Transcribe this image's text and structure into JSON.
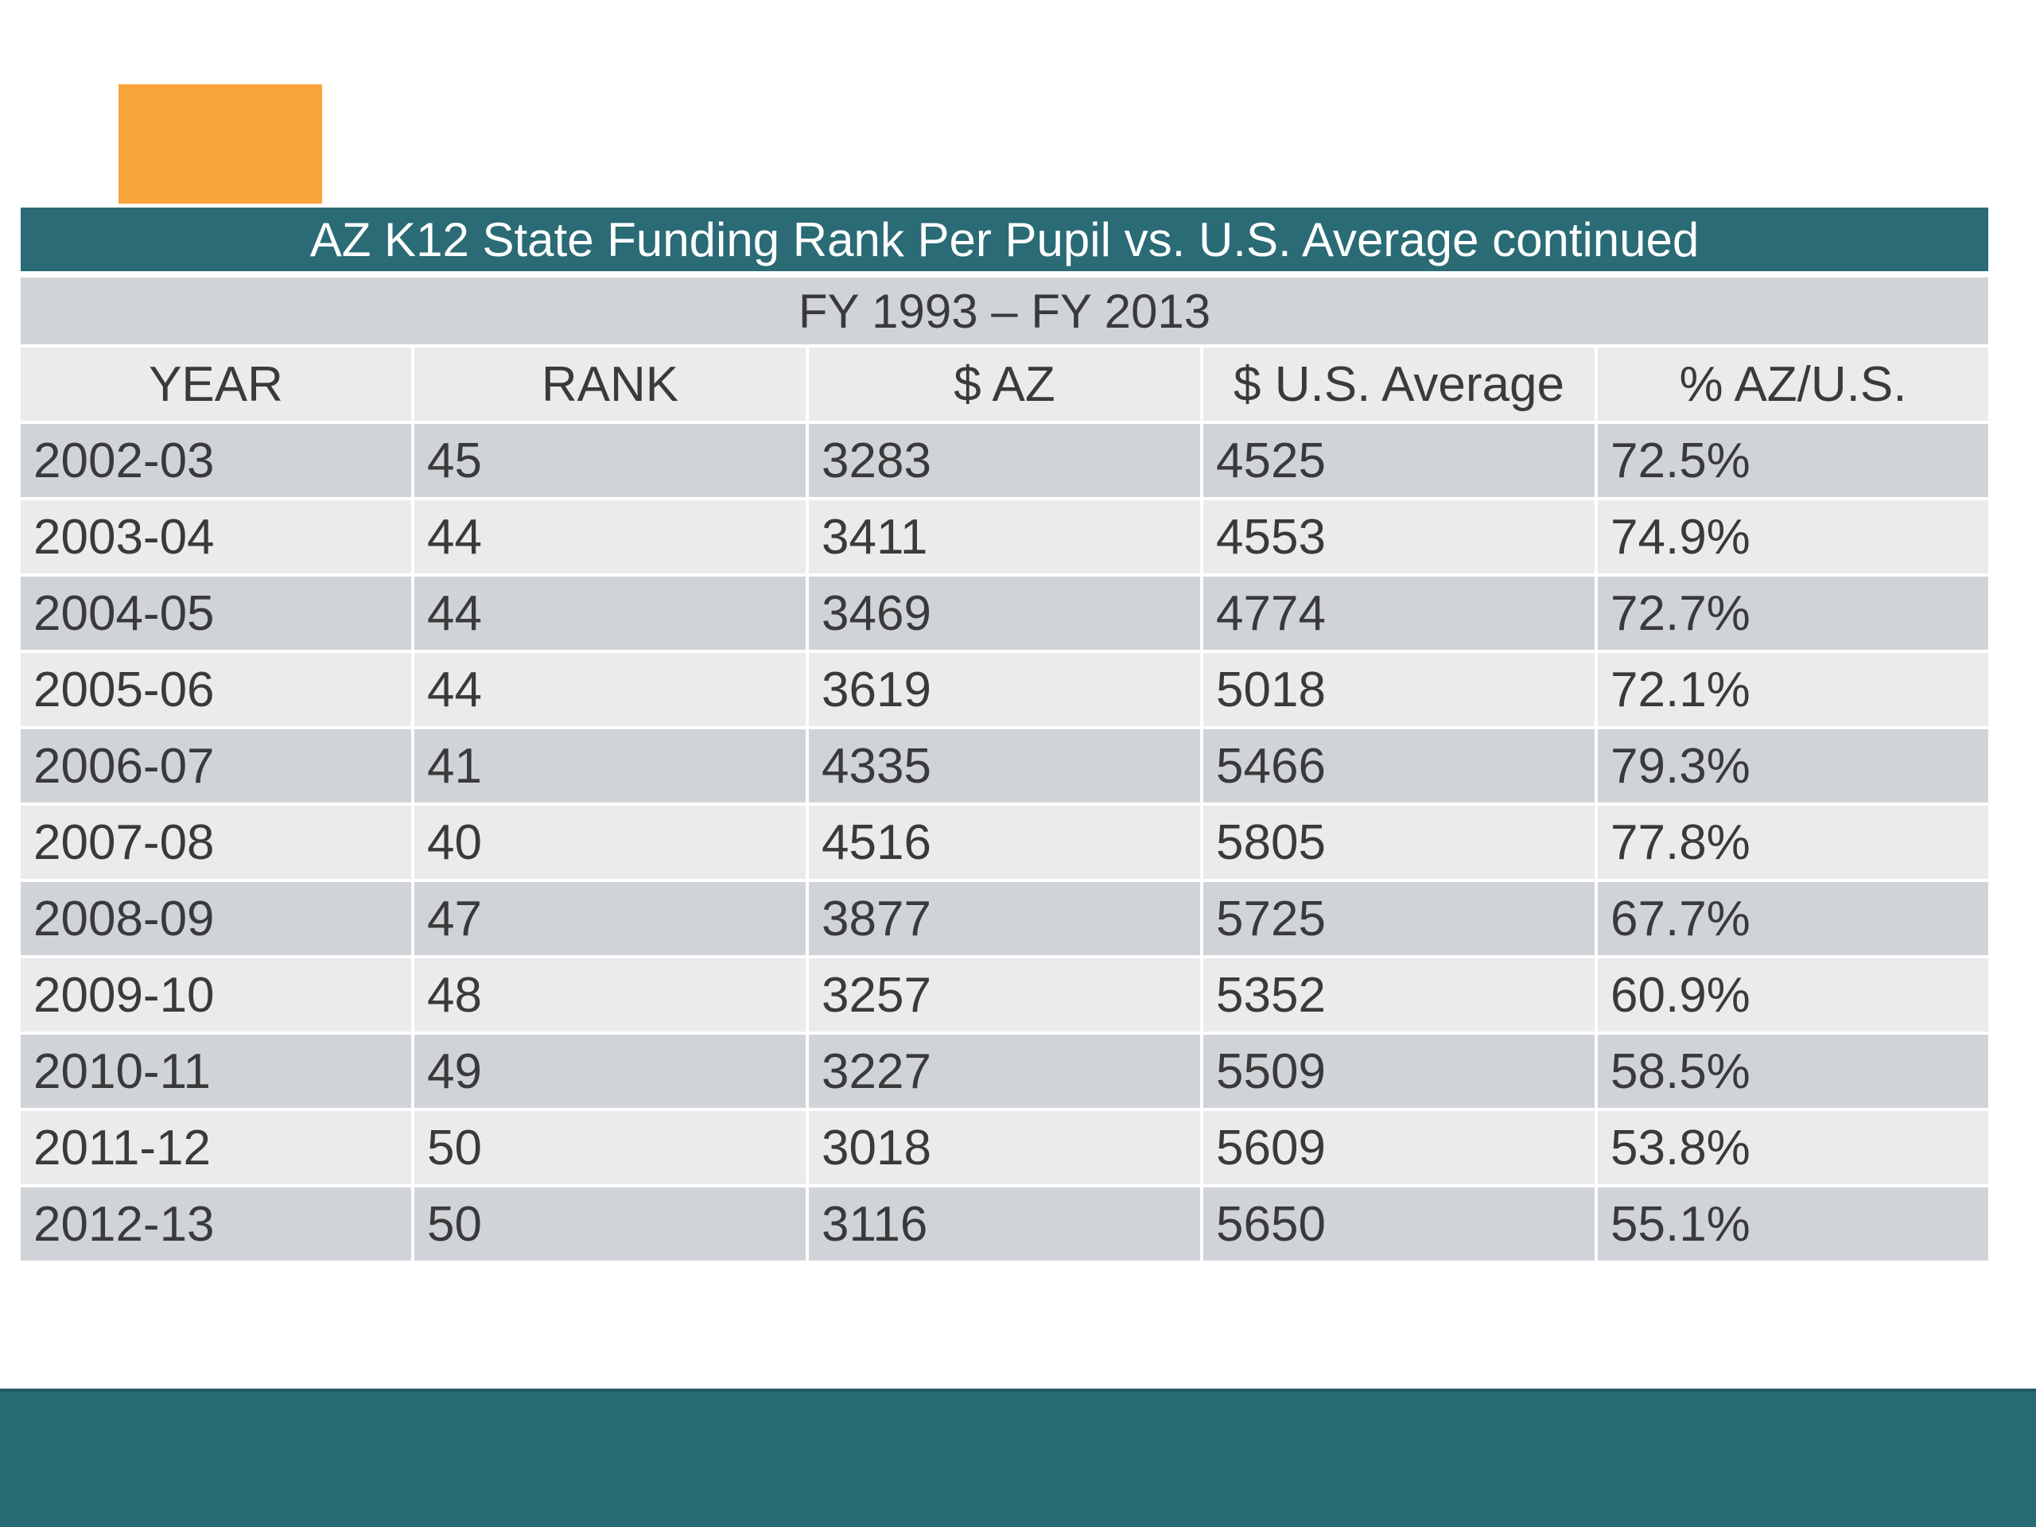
{
  "slide": {
    "title": "AZ K12 State Funding Rank Per Pupil vs. U.S. Average continued",
    "subtitle": "FY 1993 – FY 2013",
    "colors": {
      "accent": "#F9A43A",
      "title_band": "#2A6B75",
      "footer_band": "#296B74",
      "row_dark": "#D0D4D8",
      "row_light": "#E9EBEC"
    }
  },
  "table": {
    "headers": [
      "YEAR",
      "RANK",
      "$ AZ",
      "$ U.S. Average",
      "% AZ/U.S."
    ],
    "rows": [
      [
        "2002-03",
        "45",
        "3283",
        "4525",
        "72.5%"
      ],
      [
        "2003-04",
        "44",
        "3411",
        "4553",
        "74.9%"
      ],
      [
        "2004-05",
        "44",
        "3469",
        "4774",
        "72.7%"
      ],
      [
        "2005-06",
        "44",
        "3619",
        "5018",
        "72.1%"
      ],
      [
        "2006-07",
        "41",
        "4335",
        "5466",
        "79.3%"
      ],
      [
        "2007-08",
        "40",
        "4516",
        "5805",
        "77.8%"
      ],
      [
        "2008-09",
        "47",
        "3877",
        "5725",
        "67.7%"
      ],
      [
        "2009-10",
        "48",
        "3257",
        "5352",
        "60.9%"
      ],
      [
        "2010-11",
        "49",
        "3227",
        "5509",
        "58.5%"
      ],
      [
        "2011-12",
        "50",
        "3018",
        "5609",
        "53.8%"
      ],
      [
        "2012-13",
        "50",
        "3116",
        "5650",
        "55.1%"
      ]
    ]
  }
}
